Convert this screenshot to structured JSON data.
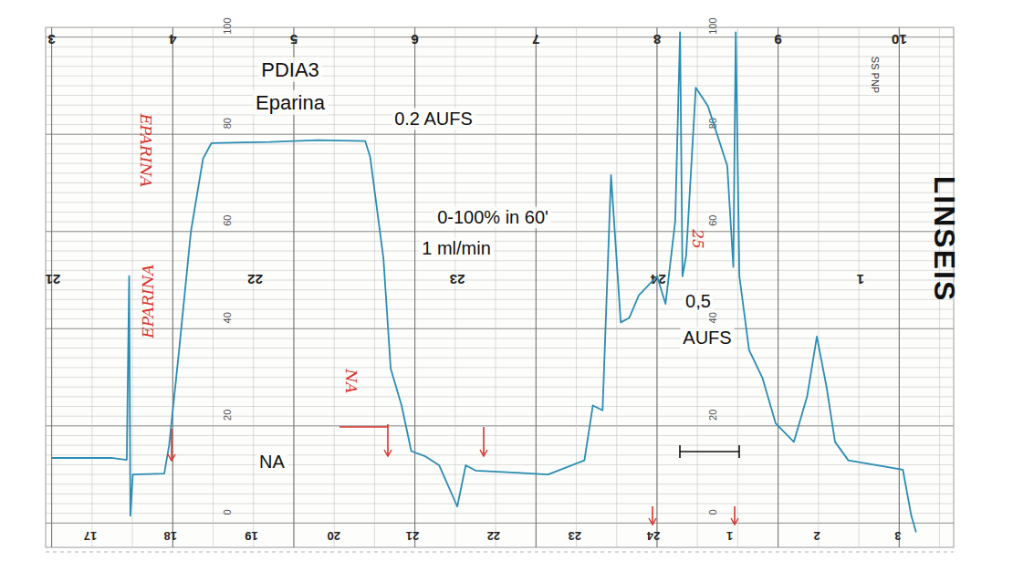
{
  "chart_data": {
    "type": "line",
    "title": "PDIA3",
    "subtitle": "Eparina",
    "x": [
      3.0,
      3.49,
      3.62,
      3.64,
      3.65,
      3.67,
      3.93,
      3.97,
      4.05,
      4.15,
      4.25,
      4.32,
      4.8,
      5.2,
      5.59,
      5.63,
      5.74,
      5.8,
      5.89,
      5.97,
      6.08,
      6.2,
      6.35,
      6.42,
      6.5,
      6.8,
      7.1,
      7.4,
      7.47,
      7.55,
      7.62,
      7.7,
      7.77,
      7.85,
      8.0,
      8.07,
      8.15,
      8.19,
      8.21,
      8.24,
      8.32,
      8.42,
      8.58,
      8.63,
      8.65,
      8.68,
      8.76,
      8.87,
      8.98,
      9.13,
      9.24,
      9.32,
      9.4,
      9.47,
      9.58,
      10.03,
      10.1,
      10.14
    ],
    "series": [
      {
        "color": "#2b8db3",
        "values": [
          13.4,
          13.4,
          13.0,
          50.8,
          1.5,
          10.0,
          10.2,
          16,
          35,
          60,
          75,
          78.2,
          78.4,
          78.8,
          78.6,
          75.4,
          54.5,
          31.8,
          24.2,
          14.8,
          13.8,
          11.9,
          3.4,
          11.9,
          10.8,
          10.4,
          10.0,
          12.9,
          24.2,
          23.2,
          71.6,
          41.3,
          42.2,
          46.9,
          50.8,
          45.1,
          62.1,
          101,
          50.8,
          54.9,
          89.6,
          85.8,
          73.5,
          52.7,
          101,
          50.8,
          35.6,
          29.9,
          20.5,
          16.7,
          26.1,
          38.4,
          28.0,
          16.7,
          12.9,
          11.0,
          1.5,
          -1.9
        ]
      }
    ],
    "xlim": [
      2.95,
      10.45
    ],
    "xticks": [
      3,
      4,
      5,
      6,
      7,
      8,
      9,
      10
    ],
    "ylim": [
      -5,
      102
    ],
    "yticks": [
      0,
      20,
      40,
      60,
      80,
      100
    ],
    "grid": true,
    "mid_ticks": [
      {
        "value": 2.98,
        "label": "21"
      },
      {
        "value": 4.65,
        "label": "22"
      },
      {
        "value": 6.32,
        "label": "23"
      },
      {
        "value": 7.98,
        "label": "24"
      },
      {
        "value": 9.65,
        "label": "1"
      }
    ],
    "bottom_ticks": [
      {
        "value": 3.32,
        "label": "17"
      },
      {
        "value": 3.98,
        "label": "18"
      },
      {
        "value": 4.65,
        "label": "19"
      },
      {
        "value": 5.33,
        "label": "20"
      },
      {
        "value": 5.98,
        "label": "21"
      },
      {
        "value": 6.65,
        "label": "22"
      },
      {
        "value": 7.32,
        "label": "23"
      },
      {
        "value": 7.97,
        "label": "24"
      },
      {
        "value": 8.6,
        "label": "1"
      },
      {
        "value": 9.32,
        "label": "2"
      },
      {
        "value": 9.99,
        "label": "3"
      }
    ],
    "annotations": [
      "0.2 AUFS",
      "0-100% in 60'",
      "1 ml/min",
      "0,5",
      "AUFS",
      "NA"
    ],
    "handwritten": [
      "EPARINA",
      "EPARINA",
      "NA",
      "25"
    ],
    "paper_texts": [
      "LINSEIS",
      "SS PNP"
    ]
  }
}
